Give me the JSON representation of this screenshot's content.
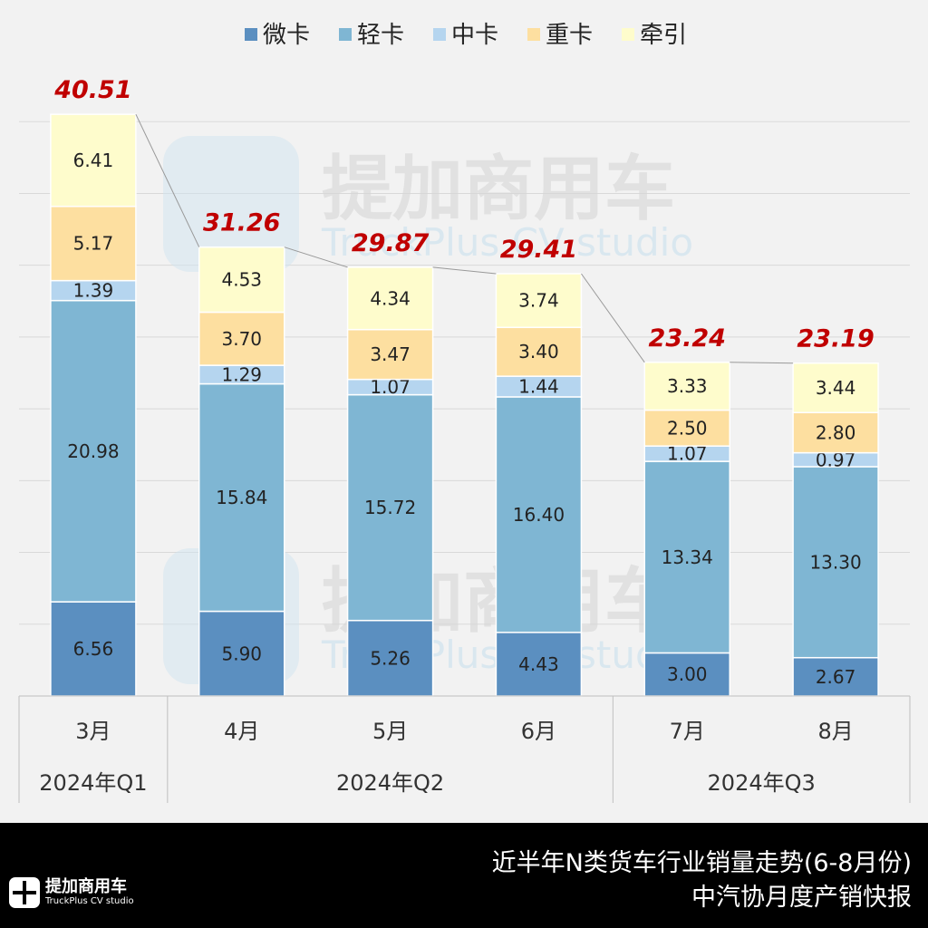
{
  "chart_data": {
    "type": "bar",
    "stacked": true,
    "categories": [
      "3月",
      "4月",
      "5月",
      "6月",
      "7月",
      "8月"
    ],
    "groups": [
      {
        "label": "2024年Q1",
        "categories": [
          "3月"
        ]
      },
      {
        "label": "2024年Q2",
        "categories": [
          "4月",
          "5月",
          "6月"
        ]
      },
      {
        "label": "2024年Q3",
        "categories": [
          "7月",
          "8月"
        ]
      }
    ],
    "series": [
      {
        "name": "微卡",
        "color": "#5b8fc0",
        "values": [
          6.56,
          5.9,
          5.26,
          4.43,
          3.0,
          2.67
        ]
      },
      {
        "name": "轻卡",
        "color": "#7fb6d3",
        "values": [
          20.98,
          15.84,
          15.72,
          16.4,
          13.34,
          13.3
        ]
      },
      {
        "name": "中卡",
        "color": "#b5d5ef",
        "values": [
          1.39,
          1.29,
          1.07,
          1.44,
          1.07,
          0.97
        ]
      },
      {
        "name": "重卡",
        "color": "#fddfa0",
        "values": [
          5.17,
          3.7,
          3.47,
          3.4,
          2.5,
          2.8
        ]
      },
      {
        "name": "牵引",
        "color": "#fefccc",
        "values": [
          6.41,
          4.53,
          4.34,
          3.74,
          3.33,
          3.44
        ]
      }
    ],
    "totals": [
      "40.51",
      "31.26",
      "29.87",
      "29.41",
      "23.24",
      "23.19"
    ],
    "total_color": "#c00000",
    "ylim": [
      0,
      45
    ],
    "grid": true,
    "legend": "top-center"
  },
  "footer": {
    "title": "近半年N类货车行业销量走势(6-8月份)",
    "subtitle": "中汽协月度产销快报"
  },
  "logo": {
    "cn": "提加商用车",
    "en": "TruckPlus CV studio"
  },
  "watermark": {
    "cn": "提加商用车",
    "en": "TruckPlus CV studio"
  }
}
